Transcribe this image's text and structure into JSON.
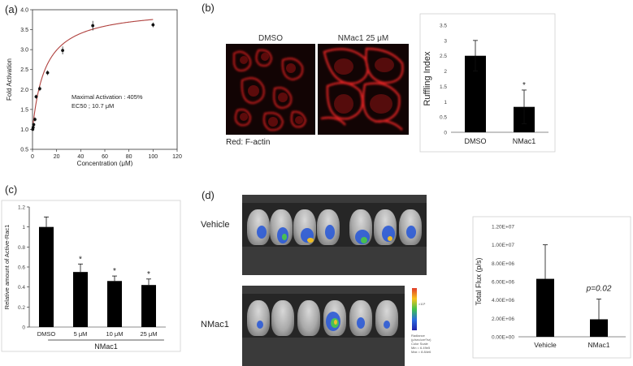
{
  "panels": {
    "a": {
      "label": "(a)",
      "annotation_line1": "Maximal Activation : 405%",
      "annotation_line2": "EC50 ; 10.7 μM"
    },
    "b": {
      "label": "(b)",
      "image_titles": [
        "DMSO",
        "NMac1 25 μM"
      ],
      "caption": "Red: F-actin",
      "significance": "*"
    },
    "c": {
      "label": "(c)",
      "group_label": "NMac1",
      "significance": "*"
    },
    "d": {
      "label": "(d)",
      "vehicle_label": "Vehicle",
      "nmac1_label": "NMac1",
      "pvalue_label": "p=0.02",
      "scale_text": "Radiance\n(p/sec/cm²/sr)\nColor Scale\nMin = 6.49e5\nMax = 8.84e6",
      "scale_exp": "×10⁶"
    }
  },
  "chart_data": [
    {
      "id": "a",
      "type": "scatter",
      "title": "",
      "xlabel": "Concentration (μM)",
      "ylabel": "Fold Activation",
      "xlim": [
        0,
        120
      ],
      "ylim": [
        0.5,
        4.0
      ],
      "x_ticks": [
        0,
        20,
        40,
        60,
        80,
        100,
        120
      ],
      "y_ticks": [
        0.5,
        1.0,
        1.5,
        2.0,
        2.5,
        3.0,
        3.5,
        4.0
      ],
      "x_tick_labels": [
        "0",
        "20",
        "40",
        "60",
        "80",
        "100",
        "120"
      ],
      "y_tick_labels": [
        "0.5",
        "1.0",
        "1.5",
        "2.0",
        "2.5",
        "3.0",
        "3.5",
        "4.0"
      ],
      "points": [
        {
          "x": 0.2,
          "y": 1.0,
          "err": 0.03
        },
        {
          "x": 0.5,
          "y": 1.05,
          "err": 0.04
        },
        {
          "x": 1.0,
          "y": 1.12,
          "err": 0.04
        },
        {
          "x": 2.0,
          "y": 1.25,
          "err": 0.05
        },
        {
          "x": 3.0,
          "y": 1.82,
          "err": 0.05
        },
        {
          "x": 6.0,
          "y": 2.02,
          "err": 0.06
        },
        {
          "x": 12.5,
          "y": 2.42,
          "err": 0.06
        },
        {
          "x": 25,
          "y": 2.98,
          "err": 0.1
        },
        {
          "x": 50,
          "y": 3.6,
          "err": 0.12
        },
        {
          "x": 100,
          "y": 3.62,
          "err": 0.06
        }
      ],
      "fit": {
        "model": "hill",
        "bottom": 1.0,
        "top": 4.05,
        "ec50": 10.7
      }
    },
    {
      "id": "b",
      "type": "bar",
      "title": "",
      "xlabel": "",
      "ylabel": "Ruffling Index",
      "categories": [
        "DMSO",
        "NMac1"
      ],
      "values": [
        2.5,
        0.83
      ],
      "errors": [
        0.5,
        0.55
      ],
      "ylim": [
        0,
        3.5
      ],
      "y_ticks": [
        0,
        0.5,
        1,
        1.5,
        2,
        2.5,
        3,
        3.5
      ],
      "y_tick_labels": [
        "0",
        "0.5",
        "1",
        "1.5",
        "2",
        "2.5",
        "3",
        "3.5"
      ]
    },
    {
      "id": "c",
      "type": "bar",
      "title": "",
      "xlabel": "",
      "ylabel": "Relative amount of Active-Rac1",
      "categories": [
        "DMSO",
        "5 μM",
        "10 μM",
        "25 μM"
      ],
      "values": [
        1.0,
        0.55,
        0.46,
        0.42
      ],
      "errors": [
        0.1,
        0.08,
        0.05,
        0.06
      ],
      "ylim": [
        0,
        1.2
      ],
      "y_ticks": [
        0,
        0.2,
        0.4,
        0.6,
        0.8,
        1,
        1.2
      ],
      "y_tick_labels": [
        "0",
        "0.2",
        "0.4",
        "0.6",
        "0.8",
        "1",
        "1.2"
      ]
    },
    {
      "id": "d",
      "type": "bar",
      "title": "",
      "xlabel": "",
      "ylabel": "Total Flux (p/s)",
      "categories": [
        "Vehicle",
        "NMac1"
      ],
      "values": [
        6300000,
        1900000
      ],
      "errors": [
        3700000,
        2200000
      ],
      "ylim": [
        0,
        12000000
      ],
      "y_ticks": [
        0,
        2000000,
        4000000,
        6000000,
        8000000,
        10000000,
        12000000
      ],
      "y_tick_labels": [
        "0.00E+00",
        "2.00E+06",
        "4.00E+06",
        "6.00E+06",
        "8.00E+06",
        "1.00E+07",
        "1.20E+07"
      ]
    }
  ]
}
